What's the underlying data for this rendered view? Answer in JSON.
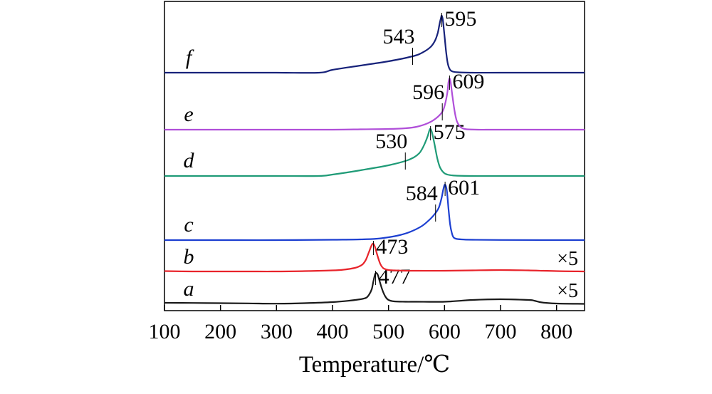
{
  "chart_data": {
    "type": "line",
    "xlabel": "Temperature/℃",
    "ylabel": "",
    "xlim": [
      100,
      850
    ],
    "x_ticks": [
      100,
      200,
      300,
      400,
      500,
      600,
      700,
      800
    ],
    "grid": false,
    "series": [
      {
        "name": "a",
        "color": "#1a1a1a",
        "multiplier": "×5",
        "offset": 0,
        "peak_labels": [
          {
            "x": 477,
            "text": "477"
          }
        ],
        "x": [
          100,
          150,
          200,
          250,
          300,
          350,
          400,
          430,
          450,
          460,
          465,
          470,
          473,
          476,
          478,
          481,
          485,
          490,
          495,
          500,
          510,
          530,
          550,
          600,
          650,
          700,
          750,
          760,
          770,
          780,
          800,
          850
        ],
        "y": [
          2,
          1.8,
          1.5,
          1.2,
          0.8,
          1.5,
          3,
          5,
          7,
          9,
          13,
          21,
          32,
          42,
          44,
          41,
          30,
          18,
          10,
          6,
          4,
          3.5,
          3.5,
          3.5,
          6,
          7,
          6,
          5,
          3,
          2,
          1,
          0.5
        ]
      },
      {
        "name": "b",
        "color": "#e8242b",
        "multiplier": "×5",
        "offset": 45,
        "peak_labels": [
          {
            "x": 473,
            "text": "473"
          }
        ],
        "x": [
          100,
          150,
          200,
          250,
          300,
          350,
          400,
          420,
          440,
          450,
          455,
          460,
          465,
          470,
          473,
          476,
          480,
          485,
          490,
          495,
          500,
          510,
          530,
          550,
          600,
          650,
          700,
          750,
          800,
          850
        ],
        "y": [
          1.5,
          1,
          1,
          1,
          1,
          1.5,
          2.5,
          3.5,
          6,
          9,
          12,
          18,
          28,
          38,
          40,
          35,
          24,
          12,
          6,
          4,
          3,
          2.5,
          2,
          2,
          2,
          2.5,
          3,
          2.5,
          1.5,
          1
        ]
      },
      {
        "name": "c",
        "color": "#1c3fd1",
        "multiplier": "",
        "offset": 90,
        "peak_labels": [
          {
            "x": 601,
            "text": "601"
          }
        ],
        "x": [
          100,
          200,
          300,
          400,
          450,
          480,
          500,
          520,
          540,
          560,
          575,
          584,
          590,
          595,
          598,
          601,
          604,
          607,
          610,
          613,
          616,
          620,
          630,
          650,
          700,
          850
        ],
        "y": [
          0,
          0,
          0,
          0.5,
          1,
          2,
          4,
          7,
          12,
          20,
          30,
          38,
          46,
          60,
          72,
          78,
          70,
          45,
          22,
          10,
          4,
          2,
          1,
          0.5,
          0.2,
          0
        ]
      },
      {
        "name": "d",
        "color": "#1f9b77",
        "multiplier": "",
        "offset": 180,
        "peak_labels": [
          {
            "x": 575,
            "text": "575"
          }
        ],
        "x": [
          100,
          200,
          300,
          375,
          400,
          450,
          500,
          530,
          545,
          555,
          560,
          565,
          570,
          573,
          575,
          578,
          582,
          587,
          592,
          598,
          605,
          620,
          650,
          700,
          850
        ],
        "y": [
          0,
          0,
          0,
          0,
          2,
          8,
          15,
          21,
          26,
          32,
          38,
          46,
          56,
          64,
          66,
          60,
          45,
          25,
          12,
          5,
          2,
          0.5,
          0,
          0,
          0
        ]
      },
      {
        "name": "e",
        "color": "#b04fd9",
        "multiplier": "",
        "offset": 245,
        "peak_labels": [
          {
            "x": 609,
            "text": "609"
          }
        ],
        "x": [
          100,
          200,
          300,
          400,
          450,
          500,
          530,
          550,
          570,
          585,
          596,
          601,
          605,
          607,
          609,
          611,
          614,
          618,
          622,
          627,
          632,
          640,
          660,
          700,
          850
        ],
        "y": [
          0,
          0,
          0,
          0,
          0.5,
          1,
          2,
          4,
          9,
          16,
          25,
          36,
          52,
          66,
          72,
          66,
          48,
          26,
          12,
          5,
          2,
          0.5,
          0,
          0,
          0
        ]
      },
      {
        "name": "f",
        "color": "#17227a",
        "multiplier": "",
        "offset": 325,
        "peak_labels": [
          {
            "x": 595,
            "text": "595"
          }
        ],
        "x": [
          100,
          200,
          300,
          377,
          400,
          450,
          500,
          543,
          560,
          575,
          583,
          588,
          591,
          594,
          595,
          597,
          600,
          603,
          606,
          610,
          615,
          625,
          650,
          700,
          850
        ],
        "y": [
          0,
          0,
          0,
          0,
          4,
          10,
          16,
          23,
          28,
          36,
          45,
          56,
          68,
          78,
          80,
          74,
          52,
          28,
          12,
          4,
          1.5,
          0.5,
          0,
          0,
          0
        ]
      }
    ],
    "annotations": [
      {
        "series": "c",
        "x": 584,
        "text": "584"
      },
      {
        "series": "d",
        "x": 530,
        "text": "530"
      },
      {
        "series": "e",
        "x": 596,
        "text": "596"
      },
      {
        "series": "f",
        "x": 543,
        "text": "543"
      }
    ]
  }
}
